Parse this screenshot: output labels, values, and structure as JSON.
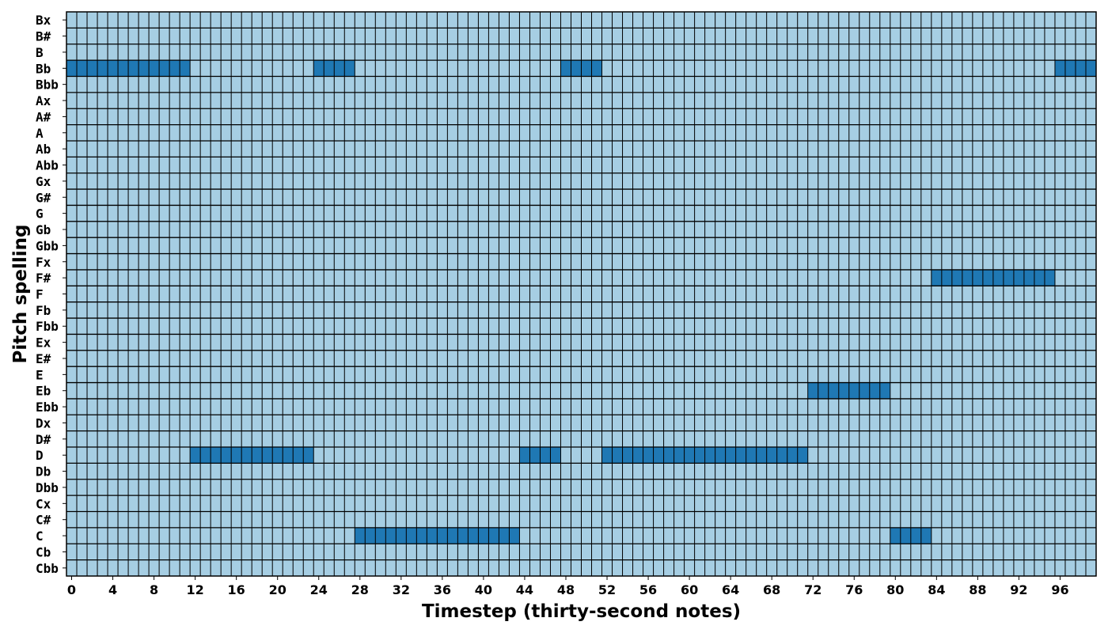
{
  "chart_data": {
    "type": "heatmap",
    "xlabel": "Timestep (thirty-second notes)",
    "ylabel": "Pitch spelling",
    "x_range": [
      0,
      99
    ],
    "x_ticks": [
      0,
      4,
      8,
      12,
      16,
      20,
      24,
      28,
      32,
      36,
      40,
      44,
      48,
      52,
      56,
      60,
      64,
      68,
      72,
      76,
      80,
      84,
      88,
      92,
      96
    ],
    "pitches": [
      "Bx",
      "B#",
      "B",
      "Bb",
      "Bbb",
      "Ax",
      "A#",
      "A",
      "Ab",
      "Abb",
      "Gx",
      "G#",
      "G",
      "Gb",
      "Gbb",
      "Fx",
      "F#",
      "F",
      "Fb",
      "Fbb",
      "Ex",
      "E#",
      "E",
      "Eb",
      "Ebb",
      "Dx",
      "D#",
      "D",
      "Db",
      "Dbb",
      "Cx",
      "C#",
      "C",
      "Cb",
      "Cbb"
    ],
    "grid": true,
    "colors": {
      "off": "#a6cee3",
      "on": "#1f78b4",
      "gridline": "#000000"
    },
    "notes": [
      {
        "pitch": "Bb",
        "start": 0,
        "end": 11
      },
      {
        "pitch": "D",
        "start": 12,
        "end": 23
      },
      {
        "pitch": "Bb",
        "start": 24,
        "end": 27
      },
      {
        "pitch": "C",
        "start": 28,
        "end": 43
      },
      {
        "pitch": "D",
        "start": 44,
        "end": 47
      },
      {
        "pitch": "Bb",
        "start": 48,
        "end": 51
      },
      {
        "pitch": "D",
        "start": 52,
        "end": 71
      },
      {
        "pitch": "Eb",
        "start": 72,
        "end": 79
      },
      {
        "pitch": "C",
        "start": 80,
        "end": 83
      },
      {
        "pitch": "F#",
        "start": 84,
        "end": 95
      },
      {
        "pitch": "Bb",
        "start": 96,
        "end": 99
      }
    ]
  }
}
